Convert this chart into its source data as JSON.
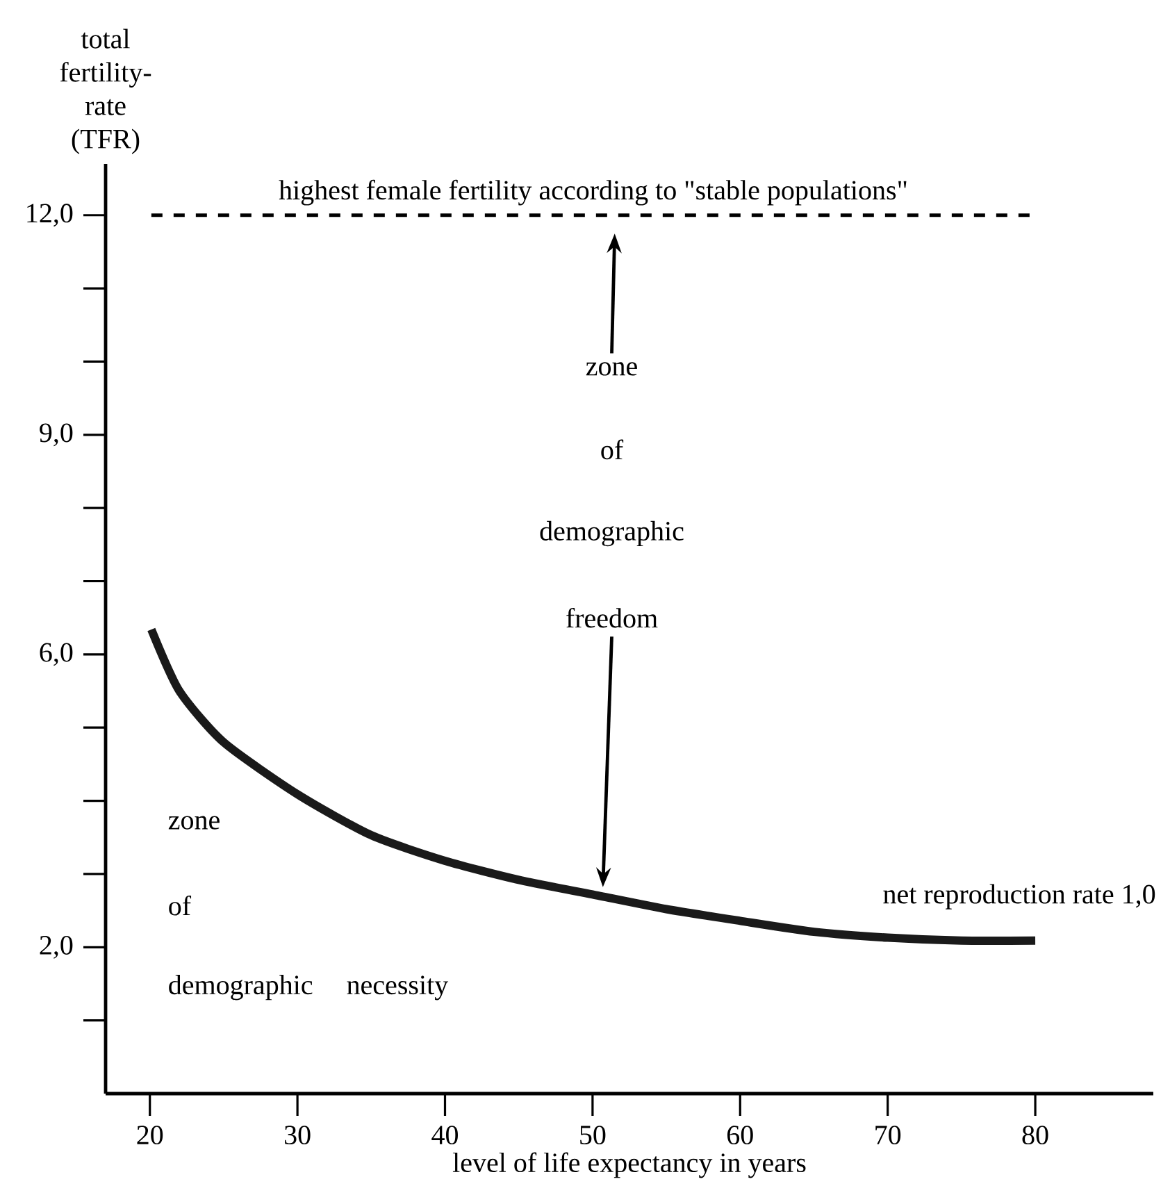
{
  "chart_data": {
    "type": "line",
    "xlabel": "level of life expectancy in years",
    "ylabel": "total fertility-rate (TFR)",
    "xlim": [
      17,
      88
    ],
    "ylim": [
      0,
      12.7
    ],
    "xticks": [
      20,
      30,
      40,
      50,
      60,
      70,
      80
    ],
    "yticks": [
      {
        "value": 2,
        "label": "2,0"
      },
      {
        "value": 6,
        "label": "6,0"
      },
      {
        "value": 9,
        "label": "9,0"
      },
      {
        "value": 12,
        "label": "12,0"
      }
    ],
    "grid": false,
    "marker": "none",
    "line_style": "solid",
    "series": [
      {
        "color": "#1a1a1a",
        "x": [
          20.1,
          22,
          25,
          30,
          35,
          40,
          45,
          50,
          55,
          60,
          65,
          70,
          75,
          80
        ],
        "values": [
          6.34,
          5.5,
          4.8,
          4.09,
          3.53,
          3.18,
          2.92,
          2.72,
          2.52,
          2.36,
          2.21,
          2.13,
          2.09,
          2.09
        ]
      }
    ],
    "ref_lines": [
      {
        "axis": "y",
        "value": 12,
        "label": "highest female fertility according to \"stable populations\"",
        "line_style": "dashed"
      }
    ],
    "annotations": [
      "zone",
      "of",
      "demographic",
      "freedom",
      "zone",
      "of",
      "demographic necessity",
      "net reproduction rate 1,0"
    ]
  }
}
